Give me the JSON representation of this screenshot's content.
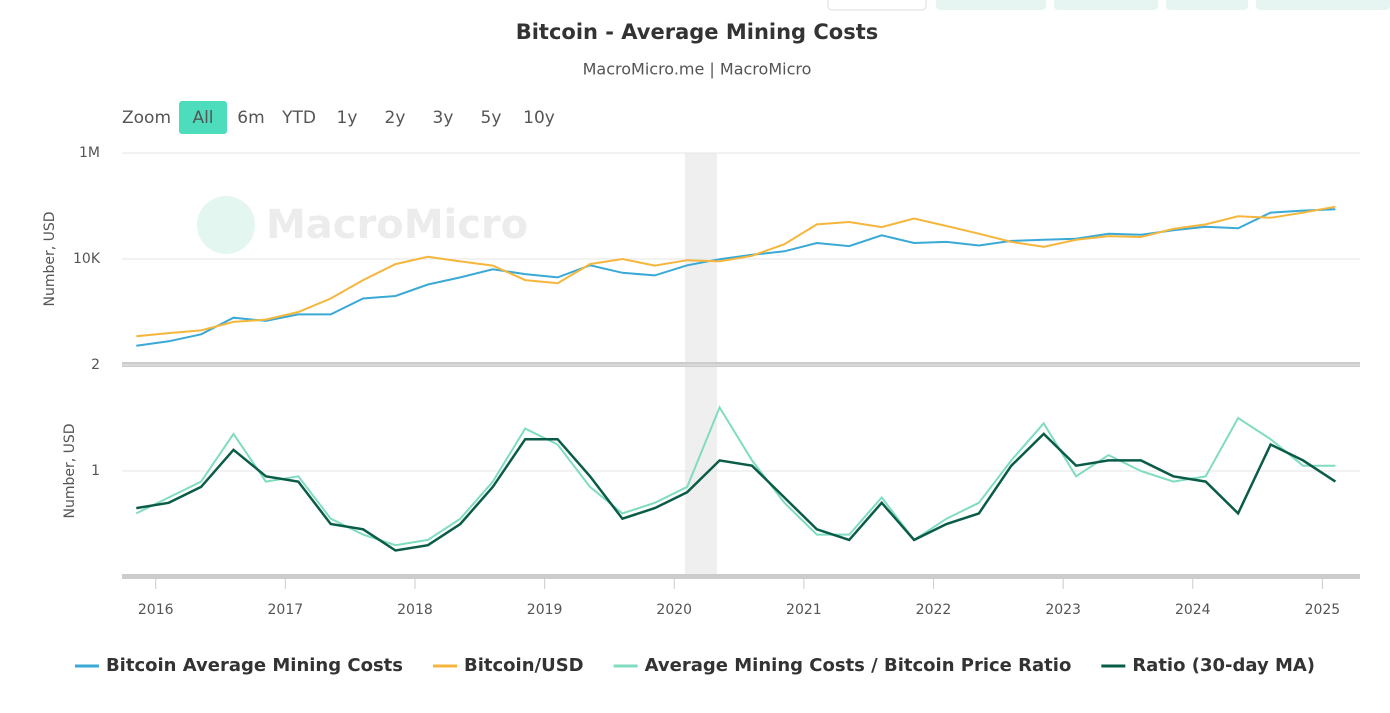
{
  "range_selector": {
    "label": "Zoom",
    "buttons": [
      "All",
      "6m",
      "YTD",
      "1y",
      "2y",
      "3y",
      "5y",
      "10y"
    ],
    "selected_index": 0,
    "disabled_index": 7
  },
  "watermark": "MacroMicro",
  "chart_data": [
    {
      "type": "line",
      "title": "Bitcoin - Average Mining Costs",
      "subtitle": "MacroMicro.me | MacroMicro",
      "y_label": "Number, USD",
      "log_scale": true,
      "grid": true,
      "xlim": [
        2015.74,
        2025.29
      ],
      "ylim": [
        100,
        1000000
      ],
      "yticks": [
        {
          "value": 1000000,
          "label": "1M"
        },
        {
          "value": 10000,
          "label": "10K"
        }
      ],
      "x": [
        2015.85,
        2016.1,
        2016.35,
        2016.6,
        2016.85,
        2017.1,
        2017.35,
        2017.6,
        2017.85,
        2018.1,
        2018.35,
        2018.6,
        2018.85,
        2019.1,
        2019.35,
        2019.6,
        2019.85,
        2020.1,
        2020.35,
        2020.6,
        2020.85,
        2021.1,
        2021.35,
        2021.6,
        2021.85,
        2022.1,
        2022.35,
        2022.6,
        2022.85,
        2023.1,
        2023.35,
        2023.6,
        2023.85,
        2024.1,
        2024.35,
        2024.6,
        2024.85,
        2025.1
      ],
      "series": [
        {
          "name": "Bitcoin Average Mining Costs",
          "color": "#3aa9d6",
          "values": [
            230,
            280,
            380,
            780,
            680,
            900,
            900,
            1800,
            2000,
            3300,
            4500,
            6400,
            5200,
            4500,
            7600,
            5500,
            4900,
            7600,
            9900,
            12000,
            14000,
            20000,
            17500,
            28000,
            20000,
            21000,
            18000,
            22000,
            23000,
            24000,
            30000,
            28600,
            35000,
            40500,
            38000,
            75000,
            82000,
            87000
          ]
        },
        {
          "name": "Bitcoin/USD",
          "color": "#f5b63c",
          "values": [
            350,
            400,
            450,
            650,
            720,
            1000,
            1800,
            4000,
            8000,
            11000,
            9000,
            7500,
            4000,
            3500,
            8000,
            10000,
            7500,
            9500,
            9000,
            11500,
            19000,
            45000,
            50000,
            40000,
            58000,
            42000,
            30000,
            21000,
            17000,
            23000,
            27000,
            26000,
            37000,
            45000,
            64000,
            60000,
            75000,
            97000
          ]
        }
      ]
    },
    {
      "type": "line",
      "y_label": "Number, USD",
      "log_scale": false,
      "grid": true,
      "xlim": [
        2015.74,
        2025.29
      ],
      "ylim": [
        0,
        2
      ],
      "yticks": [
        1,
        2
      ],
      "xticks": [
        2016,
        2017,
        2018,
        2019,
        2020,
        2021,
        2022,
        2023,
        2024,
        2025
      ],
      "x": [
        2015.85,
        2016.1,
        2016.35,
        2016.6,
        2016.85,
        2017.1,
        2017.35,
        2017.6,
        2017.85,
        2018.1,
        2018.35,
        2018.6,
        2018.85,
        2019.1,
        2019.35,
        2019.6,
        2019.85,
        2020.1,
        2020.35,
        2020.6,
        2020.85,
        2021.1,
        2021.35,
        2021.6,
        2021.85,
        2022.1,
        2022.35,
        2022.6,
        2022.85,
        2023.1,
        2023.35,
        2023.6,
        2023.85,
        2024.1,
        2024.35,
        2024.6,
        2024.85,
        2025.1
      ],
      "series": [
        {
          "name": "Average Mining Costs / Bitcoin Price Ratio",
          "color": "#7fdcc0",
          "values": [
            0.6,
            0.75,
            0.9,
            1.35,
            0.9,
            0.95,
            0.55,
            0.4,
            0.3,
            0.35,
            0.55,
            0.9,
            1.4,
            1.25,
            0.85,
            0.6,
            0.7,
            0.85,
            1.6,
            1.1,
            0.7,
            0.4,
            0.4,
            0.75,
            0.35,
            0.55,
            0.7,
            1.1,
            1.45,
            0.95,
            1.15,
            1.0,
            0.9,
            0.95,
            1.5,
            1.3,
            1.05,
            1.05
          ]
        },
        {
          "name": "Ratio (30-day MA)",
          "color": "#0a5c48",
          "values": [
            0.65,
            0.7,
            0.85,
            1.2,
            0.95,
            0.9,
            0.5,
            0.45,
            0.25,
            0.3,
            0.5,
            0.85,
            1.3,
            1.3,
            0.95,
            0.55,
            0.65,
            0.8,
            1.1,
            1.05,
            0.75,
            0.45,
            0.35,
            0.7,
            0.35,
            0.5,
            0.6,
            1.05,
            1.35,
            1.05,
            1.1,
            1.1,
            0.95,
            0.9,
            0.6,
            1.25,
            1.1,
            0.9
          ]
        }
      ]
    }
  ]
}
